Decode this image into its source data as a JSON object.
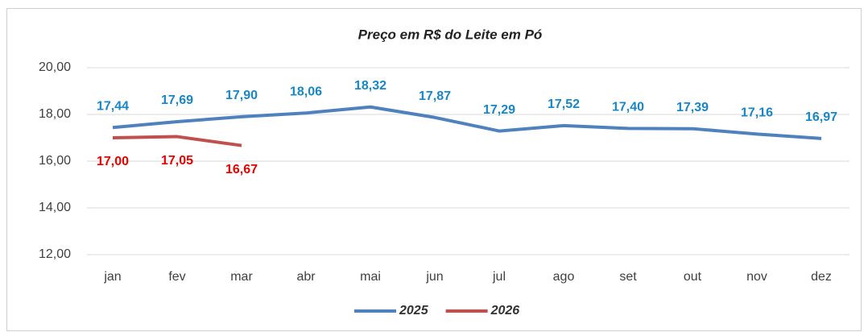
{
  "chart_data": {
    "type": "line",
    "title": "Preço em R$ do Leite em Pó",
    "categories": [
      "jan",
      "fev",
      "mar",
      "abr",
      "mai",
      "jun",
      "jul",
      "ago",
      "set",
      "out",
      "nov",
      "dez"
    ],
    "series": [
      {
        "name": "2025",
        "color": "#4f81bd",
        "label_color": "#1a86c4",
        "values": [
          17.44,
          17.69,
          17.9,
          18.06,
          18.32,
          17.87,
          17.29,
          17.52,
          17.4,
          17.39,
          17.16,
          16.97
        ],
        "value_labels": [
          "17,44",
          "17,69",
          "17,90",
          "18,06",
          "18,32",
          "17,87",
          "17,29",
          "17,52",
          "17,40",
          "17,39",
          "17,16",
          "16,97"
        ]
      },
      {
        "name": "2026",
        "color": "#c0504d",
        "label_color": "#e60000",
        "values": [
          17.0,
          17.05,
          16.67,
          null,
          null,
          null,
          null,
          null,
          null,
          null,
          null,
          null
        ],
        "value_labels": [
          "17,00",
          "17,05",
          "16,67",
          null,
          null,
          null,
          null,
          null,
          null,
          null,
          null,
          null
        ]
      }
    ],
    "ylim": [
      12,
      20
    ],
    "yticks": [
      {
        "value": 12,
        "label": "12,00"
      },
      {
        "value": 14,
        "label": "14,00"
      },
      {
        "value": 16,
        "label": "16,00"
      },
      {
        "value": 18,
        "label": "18,00"
      },
      {
        "value": 20,
        "label": "20,00"
      }
    ],
    "grid": true,
    "legend": "bottom"
  }
}
